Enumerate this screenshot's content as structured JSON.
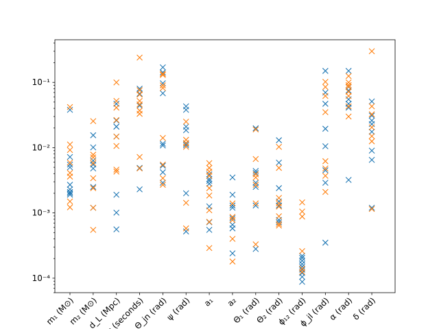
{
  "chart_data": {
    "type": "scatter",
    "title": "",
    "xlabel": "",
    "ylabel": "",
    "yscale": "log",
    "ylim": [
      6e-05,
      0.45
    ],
    "grid": false,
    "marker": "x",
    "categories": [
      "m₁ (M⊙)",
      "m₂ (M⊙)",
      "d_L (Mpc)",
      "t_c (seconds)",
      "Θ_jn (rad)",
      "ψ (rad)",
      "a₁",
      "a₂",
      "Θ₁ (rad)",
      "Θ₂ (rad)",
      "ϕ₁₂ (rad)",
      "ϕ_jl (rad)",
      "α (rad)",
      "δ (rad)"
    ],
    "ytick_labels": [
      "10⁻⁴",
      "10⁻³",
      "10⁻²",
      "10⁻¹"
    ],
    "colors": {
      "series1": "#1f77b4",
      "series2": "#ff7f0e"
    },
    "series": [
      {
        "color": "#1f77b4",
        "values": [
          [
            0.038,
            0.0072,
            0.0055,
            0.005,
            0.0027,
            0.0023,
            0.0021,
            0.002,
            0.0019
          ],
          [
            0.0155,
            0.0101,
            0.0063,
            0.0055,
            0.0048,
            0.0025,
            0.0012
          ],
          [
            0.047,
            0.026,
            0.021,
            0.021,
            0.0148,
            0.0019,
            0.00101,
            0.00056
          ],
          [
            0.08,
            0.067,
            0.044,
            0.0049,
            0.0023
          ],
          [
            0.17,
            0.142,
            0.097,
            0.068,
            0.0115,
            0.0108,
            0.0053,
            0.0042,
            0.0029
          ],
          [
            0.043,
            0.038,
            0.021,
            0.0185,
            0.0115,
            0.0109,
            0.002,
            0.00052
          ],
          [
            0.0039,
            0.0033,
            0.0031,
            0.0028,
            0.00126,
            0.00072,
            0.00055
          ],
          [
            0.0035,
            0.0019,
            0.0013,
            0.0012,
            0.00083,
            0.00066,
            0.00058,
            0.00024
          ],
          [
            0.0198,
            0.0044,
            0.0041,
            0.0029,
            0.0025,
            0.0013,
            0.00028
          ],
          [
            0.013,
            0.0059,
            0.0024,
            0.0015,
            0.0013,
            0.00078,
            0.00072
          ],
          [
            0.00022,
            0.000205,
            0.000185,
            0.000165,
            0.00015,
            0.000135,
            0.00012,
            0.000105,
            8.8e-05
          ],
          [
            0.15,
            0.07,
            0.047,
            0.0195,
            0.0105,
            0.0045,
            0.0029,
            0.00035
          ],
          [
            0.15,
            0.085,
            0.075,
            0.055,
            0.047,
            0.041,
            0.0032
          ],
          [
            0.051,
            0.031,
            0.026,
            0.023,
            0.0175,
            0.009,
            0.0065,
            0.0012
          ]
        ]
      },
      {
        "color": "#ff7f0e",
        "values": [
          [
            0.042,
            0.0112,
            0.0092,
            0.0059,
            0.0041,
            0.0036,
            0.0015,
            0.00122
          ],
          [
            0.0255,
            0.0078,
            0.0071,
            0.0058,
            0.0034,
            0.0024,
            0.0012,
            0.00055
          ],
          [
            0.1,
            0.052,
            0.041,
            0.0265,
            0.0148,
            0.0106,
            0.0046,
            0.0043
          ],
          [
            0.24,
            0.076,
            0.065,
            0.052,
            0.046,
            0.037,
            0.033,
            0.0072,
            0.0048
          ],
          [
            0.135,
            0.13,
            0.09,
            0.082,
            0.0141,
            0.0055,
            0.0034,
            0.0027
          ],
          [
            0.025,
            0.0132,
            0.0118,
            0.0103,
            0.00143,
            0.00058
          ],
          [
            0.0058,
            0.0049,
            0.0043,
            0.0037,
            0.0024,
            0.00185,
            0.0011,
            0.00073,
            0.00029
          ],
          [
            0.0014,
            0.00087,
            0.00078,
            0.0004,
            0.00018
          ],
          [
            0.019,
            0.0067,
            0.0039,
            0.0035,
            0.0027,
            0.0014,
            0.00033
          ],
          [
            0.0103,
            0.0049,
            0.0017,
            0.0014,
            0.00125,
            0.00089,
            0.00068,
            0.00064
          ],
          [
            0.00145,
            0.00105,
            0.00088,
            0.00026,
            0.00014,
            0.000125
          ],
          [
            0.102,
            0.085,
            0.062,
            0.035,
            0.0062,
            0.0048,
            0.0037,
            0.0021
          ],
          [
            0.125,
            0.1,
            0.091,
            0.086,
            0.072,
            0.062,
            0.043,
            0.03
          ],
          [
            0.3,
            0.043,
            0.0325,
            0.0205,
            0.015,
            0.0125,
            0.00115
          ]
        ]
      }
    ]
  }
}
